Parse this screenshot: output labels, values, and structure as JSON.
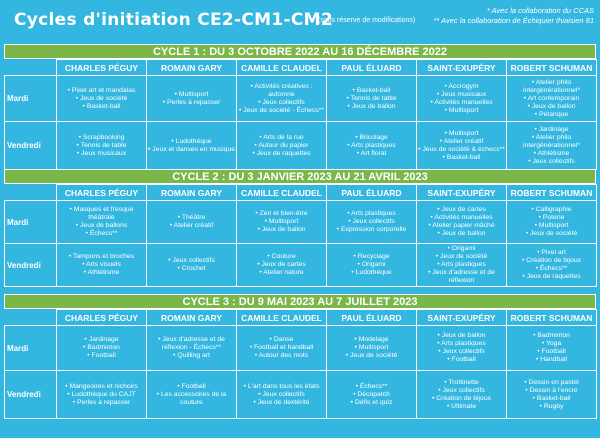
{
  "title": "Cycles d'initiation CE2-CM1-CM2",
  "subtitle_note": "(sous réserve de modifications)",
  "credits": [
    "* Avec la collaboration du CCAS",
    "** Avec la collaboration de Échiquier thiaisien 81"
  ],
  "schools": [
    "CHARLES PÉGUY",
    "ROMAIN GARY",
    "CAMILLE CLAUDEL",
    "PAUL ÉLUARD",
    "SAINT-EXUPÉRY",
    "ROBERT SCHUMAN"
  ],
  "cycles": [
    {
      "label": "CYCLE 1 : DU 3 OCTOBRE 2022 AU 16 DÉCEMBRE 2022",
      "rows": [
        {
          "day": "Mardi",
          "cells": [
            [
              "Pixel art et mandalas",
              "Jeux de société",
              "Basket-ball"
            ],
            [
              "Multisport",
              "Perles à repasser"
            ],
            [
              "Activités créatives : automne",
              "Jeux collectifs",
              "Jeux de société - Échecs**"
            ],
            [
              "Basket-ball",
              "Tennis de table",
              "Jeux de ballon"
            ],
            [
              "Accrogym",
              "Jeux musicaux",
              "Activités manuelles",
              "Multisport"
            ],
            [
              "Atelier philo intergénérationnel*",
              "Art contemporain",
              "Jeux de ballon",
              "Pétanque"
            ]
          ]
        },
        {
          "day": "Vendredi",
          "cells": [
            [
              "Scrapbooking",
              "Tennis de table",
              "Jeux musicaux"
            ],
            [
              "Ludothèque",
              "Jeux et danses en musique"
            ],
            [
              "Arts de la rue",
              "Autour du papier",
              "Jeux de raquettes"
            ],
            [
              "Bricolage",
              "Arts plastiques",
              "Art floral"
            ],
            [
              "Multisport",
              "Atelier créatif",
              "Jeux de société & échecs**",
              "Basket-ball"
            ],
            [
              "Jardinage",
              "Atelier philo intergénérationnel*",
              "Athlétisme",
              "Jeux collectifs"
            ]
          ]
        }
      ]
    },
    {
      "label": "CYCLE 2 : DU 3 JANVIER 2023 AU 21 AVRIL 2023",
      "rows": [
        {
          "day": "Mardi",
          "cells": [
            [
              "Masques et fresque théâtrale",
              "Jeux de ballons",
              "Échecs**"
            ],
            [
              "Théâtre",
              "Atelier créatif"
            ],
            [
              "Zen et bien-être",
              "Multisport",
              "Jeux de ballon"
            ],
            [
              "Arts plastiques",
              "Jeux collectifs",
              "Expression corporelle"
            ],
            [
              "Jeux de cartes",
              "Activités manuelles",
              "Atelier papier mâché",
              "Jeux de ballon"
            ],
            [
              "Calligraphie",
              "Poterie",
              "Multisport",
              "Jeux de société"
            ]
          ]
        },
        {
          "day": "Vendredi",
          "cells": [
            [
              "Tampons et broches",
              "Arts visuels",
              "Athlétisme"
            ],
            [
              "Jeux collectifs",
              "Crochet"
            ],
            [
              "Couture",
              "Jeux de cartes",
              "Atelier nature"
            ],
            [
              "Recyclage",
              "Origami",
              "Ludothèque"
            ],
            [
              "Origami",
              "Jeux de société",
              "Arts plastiques",
              "Jeux d'adresse et de réflexion"
            ],
            [
              "Pixel art",
              "Création de bijoux",
              "Échecs**",
              "Jeux de raquettes"
            ]
          ]
        }
      ]
    },
    {
      "label": "CYCLE 3 : DU 9 MAI 2023 AU 7 JUILLET 2023",
      "rows": [
        {
          "day": "Mardi",
          "cells": [
            [
              "Jardinage",
              "Badminton",
              "Football"
            ],
            [
              "Jeux d'adresse et de réflexion - Échecs**",
              "Quilling art"
            ],
            [
              "Danse",
              "Football et handball",
              "Autour des mots"
            ],
            [
              "Modelage",
              "Multisport",
              "Jeux de société"
            ],
            [
              "Jeux de ballon",
              "Arts plastiques",
              "Jeux collectifs",
              "Football"
            ],
            [
              "Badminton",
              "Yoga",
              "Football",
              "Handball"
            ]
          ]
        },
        {
          "day": "Vendredi",
          "cells": [
            [
              "Mangeoires et nichoirs",
              "Ludothèque du CAJT",
              "Perles à repasser"
            ],
            [
              "Football",
              "Les accessoires de la couture"
            ],
            [
              "L'art dans tous les états",
              "Jeux collectifs",
              "Jeux de dextérité"
            ],
            [
              "Échecs**",
              "Décopatch",
              "Défis et quiz"
            ],
            [
              "Trottinette",
              "Jeux collectifs",
              "Création de bijoux",
              "Ultimate"
            ],
            [
              "Dessin en pastel",
              "Dessin à l'encre",
              "Basket-ball",
              "Rugby"
            ]
          ]
        }
      ]
    }
  ]
}
